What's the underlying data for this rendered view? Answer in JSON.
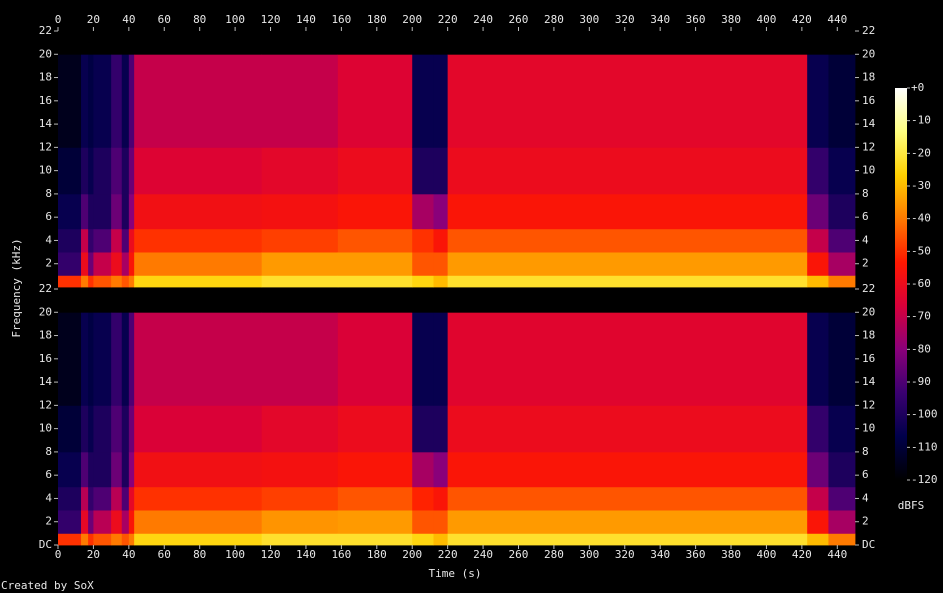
{
  "chart_data": {
    "type": "spectrogram",
    "xlabel": "Time (s)",
    "ylabel": "Frequency (kHz)",
    "colorbar_label": "dBFS",
    "footer": "Created by SoX",
    "xlim": [
      0,
      450
    ],
    "xticks": [
      0,
      20,
      40,
      60,
      80,
      100,
      120,
      140,
      160,
      180,
      200,
      220,
      240,
      260,
      280,
      300,
      320,
      340,
      360,
      380,
      400,
      420,
      440
    ],
    "ylim": [
      0,
      22
    ],
    "yticks": [
      {
        "value": 0,
        "label": "DC"
      },
      2,
      4,
      6,
      8,
      10,
      12,
      14,
      16,
      18,
      20,
      22
    ],
    "zlim": [
      -120,
      0
    ],
    "zticks": [
      {
        "value": 0,
        "label": "+0"
      },
      -10,
      -20,
      -30,
      -40,
      -50,
      -60,
      -70,
      -80,
      -90,
      -100,
      -110,
      -120
    ],
    "colors": [
      "#000000",
      "#00004a",
      "#3a0070",
      "#8a007a",
      "#d8003a",
      "#ff1800",
      "#ff7a00",
      "#ffd000",
      "#ffff80",
      "#ffffff"
    ],
    "time_bins": [
      0,
      13,
      17,
      20,
      30,
      36,
      40,
      43,
      115,
      158,
      200,
      212,
      220,
      423,
      435,
      450
    ],
    "freq_bins": [
      0,
      1,
      3,
      5,
      8,
      12,
      20,
      22
    ],
    "channels": [
      {
        "values": [
          [
            -50,
            -95,
            -100,
            -105,
            -110,
            -115,
            -120
          ],
          [
            -40,
            -60,
            -70,
            -90,
            -100,
            -105,
            -120
          ],
          [
            -50,
            -85,
            -95,
            -100,
            -105,
            -108,
            -120
          ],
          [
            -45,
            -70,
            -90,
            -100,
            -100,
            -105,
            -120
          ],
          [
            -40,
            -60,
            -70,
            -85,
            -90,
            -95,
            -120
          ],
          [
            -45,
            -75,
            -90,
            -100,
            -100,
            -105,
            -120
          ],
          [
            -40,
            -55,
            -60,
            -80,
            -85,
            -90,
            -120
          ],
          [
            -25,
            -40,
            -50,
            -58,
            -65,
            -70,
            -120
          ],
          [
            -22,
            -35,
            -48,
            -57,
            -63,
            -70,
            -120
          ],
          [
            -22,
            -35,
            -45,
            -55,
            -60,
            -65,
            -120
          ],
          [
            -25,
            -45,
            -50,
            -75,
            -100,
            -105,
            -120
          ],
          [
            -30,
            -45,
            -55,
            -80,
            -100,
            -105,
            -120
          ],
          [
            -22,
            -35,
            -45,
            -55,
            -60,
            -63,
            -120
          ],
          [
            -30,
            -55,
            -70,
            -85,
            -95,
            -105,
            -120
          ],
          [
            -40,
            -75,
            -90,
            -100,
            -105,
            -110,
            -120
          ]
        ]
      },
      {
        "values": [
          [
            -50,
            -95,
            -100,
            -105,
            -110,
            -115,
            -120
          ],
          [
            -40,
            -62,
            -72,
            -90,
            -100,
            -105,
            -120
          ],
          [
            -50,
            -85,
            -95,
            -100,
            -105,
            -108,
            -120
          ],
          [
            -45,
            -72,
            -90,
            -100,
            -100,
            -105,
            -120
          ],
          [
            -40,
            -60,
            -72,
            -85,
            -90,
            -95,
            -120
          ],
          [
            -45,
            -75,
            -90,
            -100,
            -100,
            -105,
            -120
          ],
          [
            -40,
            -55,
            -62,
            -80,
            -85,
            -90,
            -120
          ],
          [
            -25,
            -40,
            -50,
            -58,
            -66,
            -70,
            -120
          ],
          [
            -22,
            -36,
            -48,
            -57,
            -63,
            -70,
            -120
          ],
          [
            -22,
            -35,
            -45,
            -55,
            -60,
            -66,
            -120
          ],
          [
            -25,
            -45,
            -52,
            -75,
            -100,
            -105,
            -120
          ],
          [
            -30,
            -45,
            -55,
            -80,
            -100,
            -105,
            -120
          ],
          [
            -22,
            -35,
            -45,
            -55,
            -60,
            -64,
            -120
          ],
          [
            -30,
            -55,
            -70,
            -85,
            -95,
            -105,
            -120
          ],
          [
            -40,
            -75,
            -90,
            -100,
            -105,
            -110,
            -120
          ]
        ]
      }
    ]
  }
}
